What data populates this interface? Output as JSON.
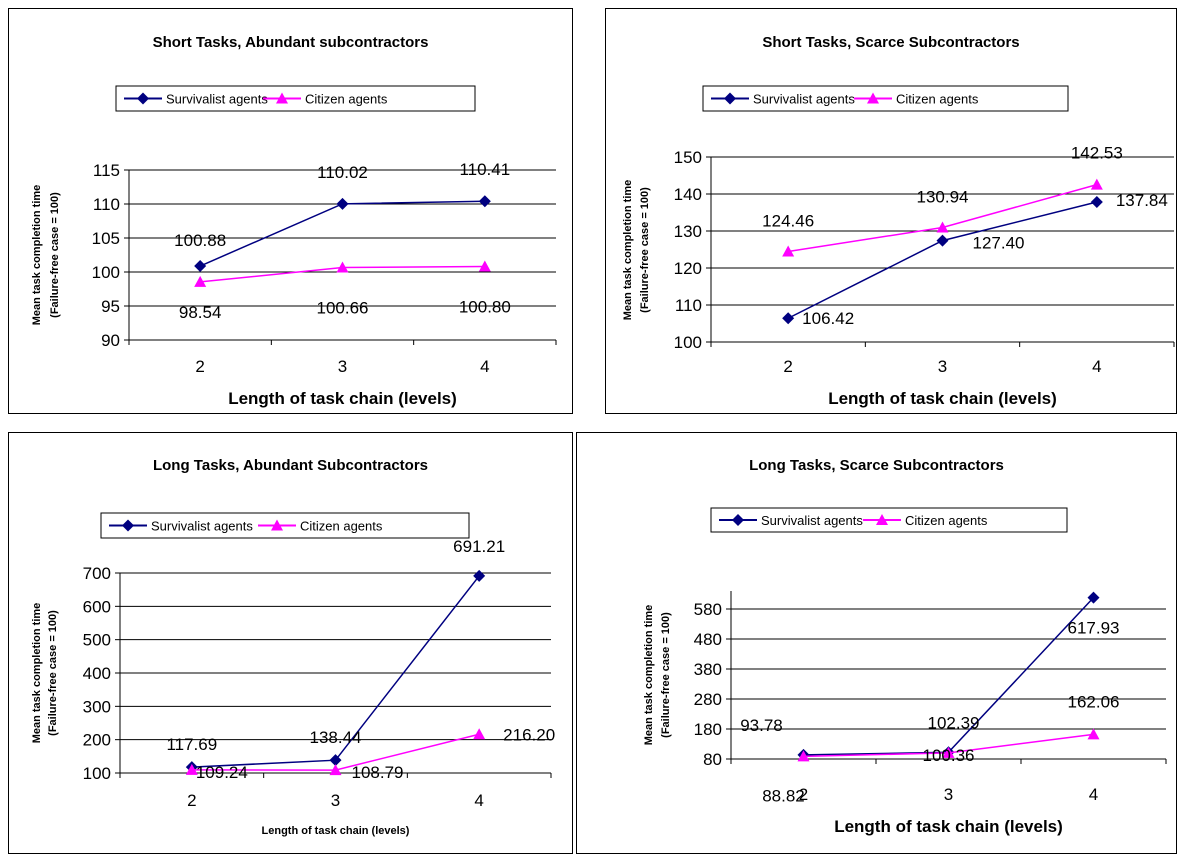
{
  "colors": {
    "survivalist": "#000080",
    "citizen": "#ff00ff",
    "grid": "#000000"
  },
  "chart_data": [
    {
      "type": "line",
      "title": "Short Tasks, Abundant subcontractors",
      "xlabel": "Length of task chain (levels)",
      "ylabel": [
        "Mean task completion time",
        "(Failure-free case = 100)"
      ],
      "x": [
        2,
        3,
        4
      ],
      "ylim": [
        90,
        115
      ],
      "yticks": [
        90,
        95,
        100,
        105,
        110,
        115
      ],
      "grid": true,
      "legend_position": "top",
      "series": [
        {
          "name": "Survivalist agents",
          "values": [
            100.88,
            110.02,
            110.41
          ],
          "labels": [
            "100.88",
            "110.02",
            "110.41"
          ],
          "marker": "diamond"
        },
        {
          "name": "Citizen agents",
          "values": [
            98.54,
            100.66,
            100.8
          ],
          "labels": [
            "98.54",
            "100.66",
            "100.80"
          ],
          "marker": "triangle"
        }
      ]
    },
    {
      "type": "line",
      "title": "Short Tasks, Scarce Subcontractors",
      "xlabel": "Length of task chain (levels)",
      "ylabel": [
        "Mean task completion time",
        "(Failure-free case = 100)"
      ],
      "x": [
        2,
        3,
        4
      ],
      "ylim": [
        100,
        150
      ],
      "yticks": [
        100,
        110,
        120,
        130,
        140,
        150
      ],
      "grid": true,
      "legend_position": "top",
      "series": [
        {
          "name": "Survivalist agents",
          "values": [
            106.42,
            127.4,
            137.84
          ],
          "labels": [
            "106.42",
            "127.40",
            "137.84"
          ],
          "marker": "diamond"
        },
        {
          "name": "Citizen agents",
          "values": [
            124.46,
            130.94,
            142.53
          ],
          "labels": [
            "124.46",
            "130.94",
            "142.53"
          ],
          "marker": "triangle"
        }
      ]
    },
    {
      "type": "line",
      "title": "Long Tasks, Abundant Subcontractors",
      "xlabel": "Length of task chain (levels)",
      "ylabel": [
        "Mean task completion time",
        "(Failure-free case = 100)"
      ],
      "x": [
        2,
        3,
        4
      ],
      "ylim": [
        100,
        700
      ],
      "yticks": [
        100,
        200,
        300,
        400,
        500,
        600,
        700
      ],
      "grid": true,
      "legend_position": "top",
      "series": [
        {
          "name": "Survivalist agents",
          "values": [
            117.69,
            138.44,
            691.21
          ],
          "labels": [
            "117.69",
            "138.44",
            "691.21"
          ],
          "marker": "diamond"
        },
        {
          "name": "Citizen agents",
          "values": [
            109.24,
            108.79,
            216.2
          ],
          "labels": [
            "109.24",
            "108.79",
            "216.20"
          ],
          "marker": "triangle"
        }
      ]
    },
    {
      "type": "line",
      "title": "Long Tasks, Scarce Subcontractors",
      "xlabel": "Length of task chain (levels)",
      "ylabel": [
        "Mean task completion time",
        "(Failure-free case = 100)"
      ],
      "x": [
        2,
        3,
        4
      ],
      "ylim": [
        80,
        640
      ],
      "yticks": [
        80,
        180,
        280,
        380,
        480,
        580
      ],
      "grid": true,
      "legend_position": "top",
      "series": [
        {
          "name": "Survivalist agents",
          "values": [
            93.78,
            102.39,
            617.93
          ],
          "labels": [
            "93.78",
            "102.39",
            "617.93"
          ],
          "marker": "diamond"
        },
        {
          "name": "Citizen agents",
          "values": [
            88.82,
            100.36,
            162.06
          ],
          "labels": [
            "88.82",
            "100.36",
            "162.06"
          ],
          "marker": "triangle"
        }
      ]
    }
  ]
}
